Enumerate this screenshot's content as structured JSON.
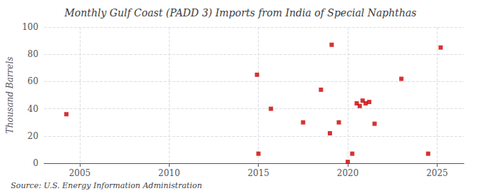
{
  "chart_data": {
    "type": "scatter",
    "title": "Monthly Gulf Coast (PADD 3) Imports from India of Special Naphthas",
    "ylabel": "Thousand Barrels",
    "annotations": [
      "Source: U.S. Energy Information Administration"
    ],
    "x": [
      2004.25,
      2014.92,
      2015.0,
      2015.7,
      2017.5,
      2018.5,
      2019.0,
      2019.1,
      2019.5,
      2020.0,
      2020.25,
      2020.5,
      2020.67,
      2020.83,
      2021.0,
      2021.2,
      2021.5,
      2023.0,
      2024.5,
      2025.2
    ],
    "values": [
      36,
      65,
      7,
      40,
      30,
      54,
      22,
      87,
      30,
      1,
      7,
      44,
      42,
      46,
      44,
      45,
      29,
      62,
      7,
      85
    ],
    "color": "#cc0000",
    "marker": "square",
    "xlim": [
      2003.0,
      2026.5
    ],
    "ylim": [
      0,
      100
    ],
    "xticks": [
      2005,
      2010,
      2015,
      2020,
      2025
    ],
    "yticks": [
      0,
      20,
      40,
      60,
      80,
      100
    ],
    "grid": true
  }
}
